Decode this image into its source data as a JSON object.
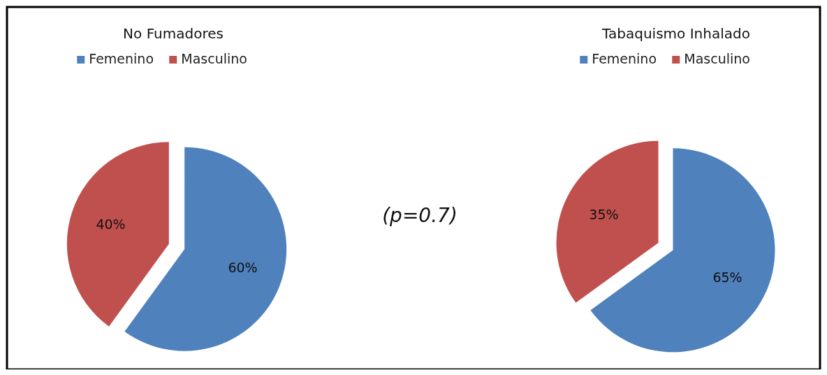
{
  "chart_data": [
    {
      "type": "pie",
      "title": "No Fumadores",
      "categories": [
        "Femenino",
        "Masculino"
      ],
      "values": [
        60,
        40
      ],
      "value_labels": [
        "60%",
        "40%"
      ],
      "colors": [
        "#4f81bd",
        "#c0504d"
      ],
      "legend": "top",
      "annotations": [
        "(p=0.7)"
      ]
    },
    {
      "type": "pie",
      "title": "Tabaquismo Inhalado",
      "categories": [
        "Femenino",
        "Masculino"
      ],
      "values": [
        65,
        35
      ],
      "value_labels": [
        "65%",
        "35%"
      ],
      "colors": [
        "#4f81bd",
        "#c0504d"
      ],
      "legend": "top"
    }
  ]
}
